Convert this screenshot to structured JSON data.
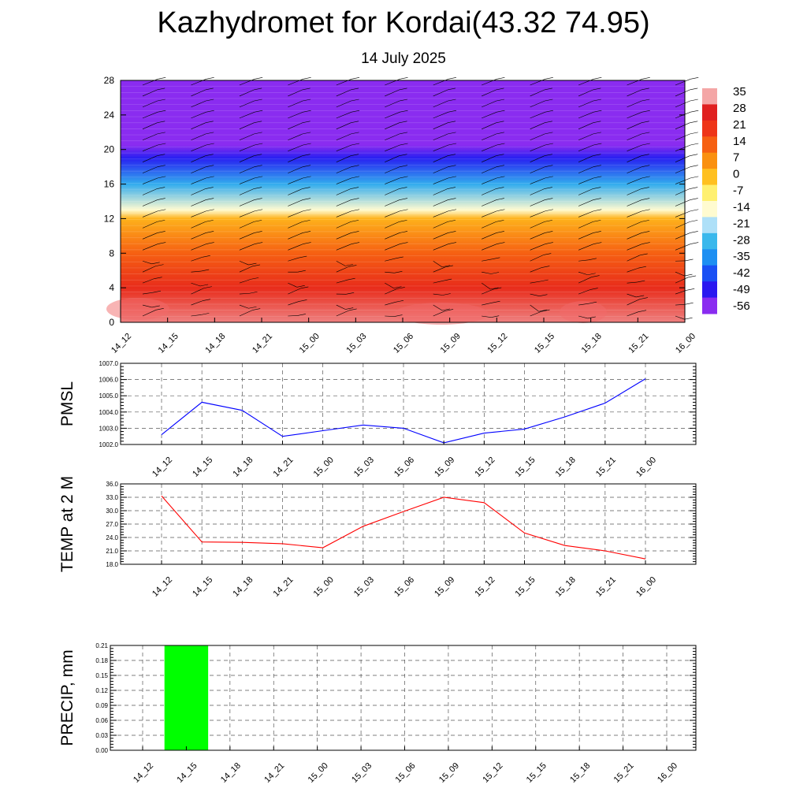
{
  "header": {
    "title": "Kazhydromet for Kordai(43.32 74.95)",
    "subtitle": "14 July 2025"
  },
  "chart_data": [
    {
      "type": "heatmap",
      "title": "",
      "ylabel": "",
      "ylim": [
        0,
        28
      ],
      "yticks": [
        "0",
        "4",
        "8",
        "12",
        "16",
        "20",
        "24",
        "28"
      ],
      "x_ticks": [
        "14_12",
        "14_15",
        "14_18",
        "14_21",
        "15_00",
        "15_03",
        "15_06",
        "15_09",
        "15_12",
        "15_15",
        "15_18",
        "15_21",
        "16_00"
      ],
      "layers_by_height": [
        {
          "y": 0,
          "value": 33
        },
        {
          "y": 4,
          "value": 24
        },
        {
          "y": 8,
          "value": 14
        },
        {
          "y": 12,
          "value": 2
        },
        {
          "y": 13,
          "value": -14
        },
        {
          "y": 16,
          "value": -30
        },
        {
          "y": 19,
          "value": -48
        },
        {
          "y": 20.5,
          "value": -58
        },
        {
          "y": 23,
          "value": -56
        },
        {
          "y": 28,
          "value": -56
        }
      ],
      "colorbar": {
        "labels": [
          "35",
          "28",
          "21",
          "14",
          "7",
          "0",
          "-7",
          "-14",
          "-21",
          "-28",
          "-35",
          "-42",
          "-49",
          "-56"
        ],
        "colors": [
          "#f4a6a6",
          "#e02020",
          "#ee3518",
          "#f66012",
          "#fa9010",
          "#ffc020",
          "#fff070",
          "#fffbd0",
          "#aee0f8",
          "#3ab8ec",
          "#1e8ff2",
          "#1a50f4",
          "#2a18f0",
          "#8a2cf0"
        ]
      },
      "wind_barbs": true
    },
    {
      "type": "line",
      "ylabel": "PMSL",
      "ylim": [
        1002.0,
        1007.0
      ],
      "yticks": [
        "1002.0",
        "1003.0",
        "1004.0",
        "1005.0",
        "1006.0",
        "1007.0"
      ],
      "x": [
        "14_12",
        "14_15",
        "14_18",
        "14_21",
        "15_00",
        "15_03",
        "15_06",
        "15_09",
        "15_12",
        "15_15",
        "15_18",
        "15_21",
        "16_00"
      ],
      "series": [
        {
          "values": [
            1002.6,
            1004.6,
            1004.1,
            1002.5,
            1002.85,
            1003.2,
            1003.0,
            1002.1,
            1002.7,
            1002.95,
            1003.7,
            1004.55,
            1006.05
          ],
          "color": "#0000ff"
        }
      ],
      "grid": true
    },
    {
      "type": "line",
      "ylabel": "TEMP at 2 M",
      "ylim": [
        18.0,
        36.0
      ],
      "yticks": [
        "18.0",
        "21.0",
        "24.0",
        "27.0",
        "30.0",
        "33.0",
        "36.0"
      ],
      "x": [
        "14_12",
        "14_15",
        "14_18",
        "14_21",
        "15_00",
        "15_03",
        "15_06",
        "15_09",
        "15_12",
        "15_15",
        "15_18",
        "15_21",
        "16_00"
      ],
      "series": [
        {
          "values": [
            33.3,
            23.0,
            22.9,
            22.6,
            21.7,
            26.5,
            29.8,
            33.0,
            31.8,
            25.0,
            22.2,
            21.0,
            19.2
          ],
          "color": "#ff0000"
        }
      ],
      "grid": true
    },
    {
      "type": "bar",
      "ylabel": "PRECIP, mm",
      "ylim": [
        0,
        0.21
      ],
      "yticks": [
        "0.00",
        "0.03",
        "0.06",
        "0.09",
        "0.12",
        "0.15",
        "0.18",
        "0.21"
      ],
      "categories": [
        "14_12",
        "14_15",
        "14_18",
        "14_21",
        "15_00",
        "15_03",
        "15_06",
        "15_09",
        "15_12",
        "15_15",
        "15_18",
        "15_21",
        "16_00"
      ],
      "values": [
        0,
        0.21,
        0,
        0,
        0,
        0,
        0,
        0,
        0,
        0,
        0,
        0,
        0
      ],
      "color": "#00ff00",
      "grid": true
    }
  ]
}
